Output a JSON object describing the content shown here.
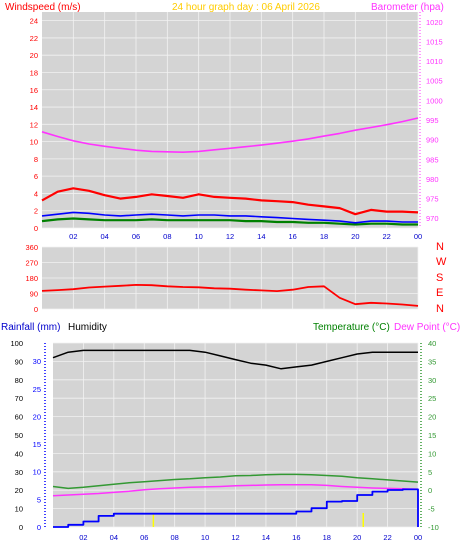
{
  "header": {
    "windspeed_label": "Windspeed (m/s)",
    "graph_title": "24 hour graph day : 06 April 2026",
    "barometer_label": "Barometer (hpa)"
  },
  "lower_labels": {
    "rainfall": "Rainfall (mm)",
    "humidity": "Humidity",
    "temperature": "Temperature (°C)",
    "dewpoint": "Dew Point (°C)"
  },
  "direction_labels": [
    "N",
    "W",
    "S",
    "E",
    "N"
  ],
  "colors": {
    "background": "#ffffff",
    "plot_background": "#d4d4d4",
    "grid": "#f2f2f2",
    "wind_gust": "#ff0000",
    "wind_average": "#0000ff",
    "wind_speed": "#008000",
    "barometer": "#ff33ff",
    "title": "#ffcc00",
    "rainfall": "#0000ff",
    "humidity": "#000000",
    "temperature": "#339933",
    "dewpoint": "#ff33ff",
    "axis_left": "#ff0000",
    "axis_right": "#ff33ff",
    "direction": "#ff0000",
    "marker": "#ffff00"
  },
  "chart_data": [
    {
      "type": "line",
      "x_axis": {
        "ticks": [
          "02",
          "04",
          "06",
          "08",
          "10",
          "12",
          "14",
          "16",
          "18",
          "20",
          "22",
          "00"
        ],
        "range_hours": [
          0,
          24
        ]
      },
      "left_axis": {
        "label": "Windspeed (m/s)",
        "ticks": [
          "0",
          "2",
          "4",
          "6",
          "8",
          "10",
          "12",
          "14",
          "16",
          "18",
          "20",
          "22",
          "24"
        ],
        "ylim": [
          0,
          25
        ]
      },
      "right_axis": {
        "label": "Barometer (hpa)",
        "ticks": [
          "970",
          "975",
          "980",
          "985",
          "990",
          "995",
          "1000",
          "1005",
          "1010",
          "1015",
          "1020"
        ],
        "ylim": [
          967.5,
          1022.5
        ]
      },
      "series": [
        {
          "name": "Barometer (hpa)",
          "axis": "right",
          "x": [
            0,
            1,
            2,
            3,
            4,
            5,
            6,
            7,
            8,
            9,
            10,
            11,
            12,
            13,
            14,
            15,
            16,
            17,
            18,
            19,
            20,
            21,
            22,
            23,
            24
          ],
          "values": [
            992.0,
            990.8,
            989.7,
            988.9,
            988.3,
            987.8,
            987.3,
            987.0,
            986.9,
            986.8,
            987.0,
            987.4,
            987.8,
            988.2,
            988.6,
            989.1,
            989.6,
            990.2,
            990.9,
            991.6,
            992.4,
            993.1,
            993.8,
            994.6,
            995.5
          ]
        },
        {
          "name": "wind gust",
          "axis": "left",
          "x": [
            0,
            1,
            2,
            3,
            4,
            5,
            6,
            7,
            8,
            9,
            10,
            11,
            12,
            13,
            14,
            15,
            16,
            17,
            18,
            19,
            20,
            21,
            22,
            23,
            24
          ],
          "values": [
            3.2,
            4.2,
            4.6,
            4.3,
            3.8,
            3.4,
            3.6,
            3.9,
            3.7,
            3.5,
            3.9,
            3.6,
            3.5,
            3.4,
            3.2,
            3.1,
            3.0,
            2.7,
            2.5,
            2.3,
            1.6,
            2.1,
            1.9,
            1.9,
            1.8
          ]
        },
        {
          "name": "wind average",
          "axis": "left",
          "x": [
            0,
            1,
            2,
            3,
            4,
            5,
            6,
            7,
            8,
            9,
            10,
            11,
            12,
            13,
            14,
            15,
            16,
            17,
            18,
            19,
            20,
            21,
            22,
            23,
            24
          ],
          "values": [
            1.4,
            1.6,
            1.8,
            1.7,
            1.5,
            1.4,
            1.5,
            1.6,
            1.5,
            1.4,
            1.5,
            1.5,
            1.4,
            1.4,
            1.3,
            1.2,
            1.1,
            1.0,
            0.9,
            0.8,
            0.6,
            0.8,
            0.8,
            0.7,
            0.7
          ]
        },
        {
          "name": "wind speed",
          "axis": "left",
          "x": [
            0,
            1,
            2,
            3,
            4,
            5,
            6,
            7,
            8,
            9,
            10,
            11,
            12,
            13,
            14,
            15,
            16,
            17,
            18,
            19,
            20,
            21,
            22,
            23,
            24
          ],
          "values": [
            0.8,
            1.0,
            1.1,
            1.0,
            0.9,
            0.9,
            0.9,
            1.0,
            0.9,
            0.9,
            0.9,
            0.9,
            0.9,
            0.8,
            0.8,
            0.7,
            0.7,
            0.6,
            0.6,
            0.5,
            0.4,
            0.5,
            0.5,
            0.4,
            0.4
          ]
        }
      ],
      "grid": true
    },
    {
      "type": "line",
      "x_axis": {
        "range_hours": [
          0,
          24
        ]
      },
      "left_axis": {
        "label": "Wind direction (degrees)",
        "ticks": [
          "0",
          "90",
          "180",
          "270",
          "360"
        ],
        "ylim": [
          0,
          360
        ]
      },
      "right_axis": {
        "ticks": [
          "N",
          "W",
          "S",
          "E",
          "N"
        ]
      },
      "series": [
        {
          "name": "wind direction",
          "axis": "left",
          "x": [
            0,
            1,
            2,
            3,
            4,
            5,
            6,
            7,
            8,
            9,
            10,
            11,
            12,
            13,
            14,
            15,
            16,
            17,
            18,
            19,
            20,
            21,
            22,
            23,
            24
          ],
          "values": [
            105,
            110,
            115,
            125,
            130,
            135,
            140,
            138,
            132,
            128,
            126,
            120,
            118,
            112,
            108,
            104,
            112,
            128,
            132,
            65,
            28,
            36,
            32,
            26,
            18
          ]
        }
      ],
      "grid": true
    },
    {
      "type": "line",
      "x_axis": {
        "ticks": [
          "02",
          "04",
          "06",
          "08",
          "10",
          "12",
          "14",
          "16",
          "18",
          "20",
          "22",
          "00"
        ],
        "range_hours": [
          0,
          24
        ]
      },
      "left_axis": {
        "label": "Rainfall (mm) / Humidity",
        "ticks": [
          "0",
          "10",
          "20",
          "30",
          "40",
          "50",
          "60",
          "70",
          "80",
          "90",
          "100"
        ],
        "ylim": [
          0,
          100
        ]
      },
      "rain_axis": {
        "label": "Rainfall (mm)",
        "ticks": [
          "0",
          "5",
          "10",
          "15",
          "20",
          "25",
          "30"
        ],
        "ylim": [
          0,
          33.3
        ]
      },
      "right_axis": {
        "label": "Temperature (°C) / Dew Point (°C)",
        "ticks": [
          "-10",
          "-5",
          "0",
          "5",
          "10",
          "15",
          "20",
          "25",
          "30",
          "35",
          "40"
        ],
        "ylim": [
          -10,
          40
        ]
      },
      "series": [
        {
          "name": "Humidity",
          "axis": "left",
          "x": [
            0,
            1,
            2,
            3,
            4,
            5,
            6,
            7,
            8,
            9,
            10,
            11,
            12,
            13,
            14,
            15,
            16,
            17,
            18,
            19,
            20,
            21,
            22,
            23,
            24
          ],
          "values": [
            92,
            95,
            96,
            96,
            96,
            96,
            96,
            96,
            96,
            96,
            95,
            93,
            91,
            89,
            88,
            86,
            87,
            88,
            90,
            92,
            94,
            95,
            95,
            95,
            95
          ]
        },
        {
          "name": "Temperature (°C)",
          "axis": "right",
          "x": [
            0,
            1,
            2,
            3,
            4,
            5,
            6,
            7,
            8,
            9,
            10,
            11,
            12,
            13,
            14,
            15,
            16,
            17,
            18,
            19,
            20,
            21,
            22,
            23,
            24
          ],
          "values": [
            1.0,
            0.5,
            0.8,
            1.2,
            1.6,
            2.0,
            2.3,
            2.6,
            2.9,
            3.1,
            3.4,
            3.6,
            3.9,
            4.0,
            4.2,
            4.3,
            4.3,
            4.2,
            4.0,
            3.8,
            3.4,
            3.1,
            2.8,
            2.5,
            2.2
          ]
        },
        {
          "name": "Dew Point (°C)",
          "axis": "right",
          "x": [
            0,
            1,
            2,
            3,
            4,
            5,
            6,
            7,
            8,
            9,
            10,
            11,
            12,
            13,
            14,
            15,
            16,
            17,
            18,
            19,
            20,
            21,
            22,
            23,
            24
          ],
          "values": [
            -1.5,
            -1.3,
            -1.1,
            -0.9,
            -0.6,
            -0.3,
            0.1,
            0.4,
            0.6,
            0.8,
            0.9,
            1.0,
            1.2,
            1.3,
            1.4,
            1.5,
            1.5,
            1.5,
            1.3,
            1.0,
            0.8,
            0.6,
            0.5,
            0.4,
            0.3
          ]
        },
        {
          "name": "Rainfall (mm)",
          "axis": "rain",
          "x": [
            0,
            1,
            2,
            3,
            4,
            5,
            6,
            7,
            8,
            9,
            10,
            11,
            12,
            13,
            14,
            15,
            16,
            17,
            18,
            19,
            20,
            21,
            22,
            23,
            23.9,
            24
          ],
          "values": [
            0.0,
            0.4,
            1.0,
            2.0,
            2.4,
            2.4,
            2.4,
            2.4,
            2.4,
            2.4,
            2.4,
            2.4,
            2.4,
            2.4,
            2.4,
            2.4,
            2.8,
            3.4,
            4.6,
            4.7,
            5.8,
            6.4,
            6.7,
            6.8,
            6.8,
            0.0
          ]
        }
      ],
      "markers_hours": [
        6.6,
        20.4
      ],
      "grid": true
    }
  ]
}
